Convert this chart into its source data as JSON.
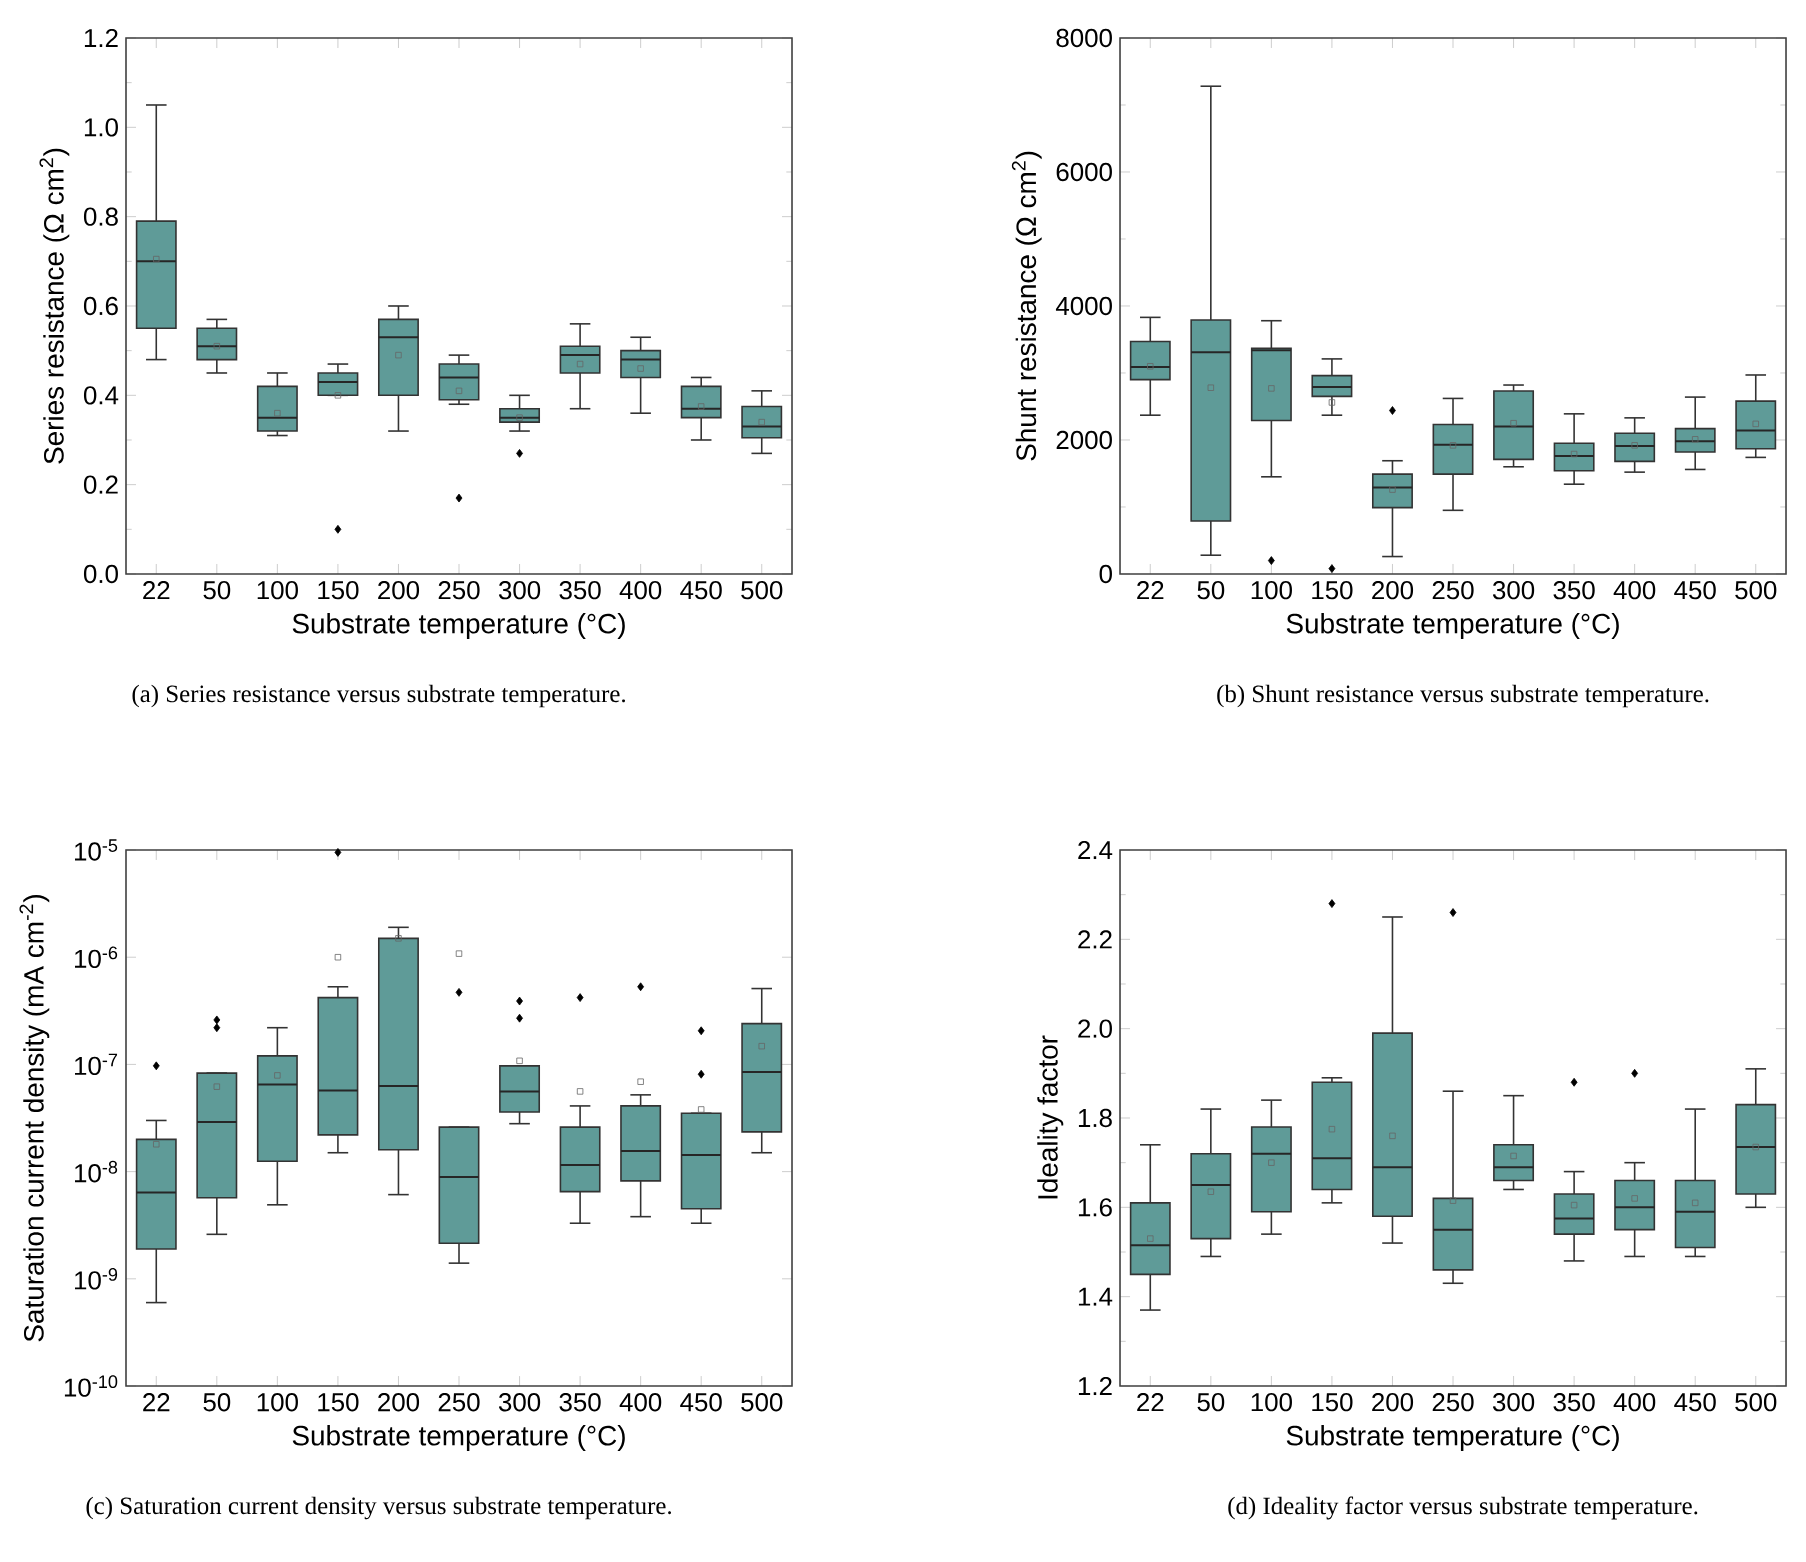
{
  "chart_data": [
    {
      "type": "box",
      "xlabel": "Substrate temperature (°C)",
      "ylabel": "Series resistance (Ω cm$^{2}$)",
      "categories": [
        "22",
        "50",
        "100",
        "150",
        "200",
        "250",
        "300",
        "350",
        "400",
        "450",
        "500"
      ],
      "color": "#5f9b98",
      "ylim": [
        0,
        1.2
      ],
      "yticks": [
        {
          "value": 0,
          "label": "0.0"
        },
        {
          "value": 0.2,
          "label": "0.2"
        },
        {
          "value": 0.4,
          "label": "0.4"
        },
        {
          "value": 0.6,
          "label": "0.6"
        },
        {
          "value": 0.8,
          "label": "0.8"
        },
        {
          "value": 1.0,
          "label": "1.0"
        },
        {
          "value": 1.2,
          "label": "1.2"
        }
      ],
      "annotations": [
        "(a) Series resistance versus substrate temperature."
      ],
      "boxes": [
        {
          "low": 0.48,
          "q1": 0.55,
          "median": 0.7,
          "q3": 0.79,
          "high": 1.05,
          "mean": 0.705
        },
        {
          "low": 0.45,
          "q1": 0.48,
          "median": 0.51,
          "q3": 0.55,
          "high": 0.57,
          "mean": 0.51
        },
        {
          "low": 0.31,
          "q1": 0.32,
          "median": 0.35,
          "q3": 0.42,
          "high": 0.45,
          "mean": 0.36
        },
        {
          "low": 0.4,
          "q1": 0.4,
          "median": 0.43,
          "q3": 0.45,
          "high": 0.47,
          "mean": 0.4,
          "outliers": [
            0.1
          ]
        },
        {
          "low": 0.32,
          "q1": 0.4,
          "median": 0.53,
          "q3": 0.57,
          "high": 0.6,
          "mean": 0.49
        },
        {
          "low": 0.38,
          "q1": 0.39,
          "median": 0.44,
          "q3": 0.47,
          "high": 0.49,
          "mean": 0.41,
          "outliers": [
            0.17
          ]
        },
        {
          "low": 0.32,
          "q1": 0.34,
          "median": 0.35,
          "q3": 0.37,
          "high": 0.4,
          "mean": 0.35,
          "outliers": [
            0.27
          ]
        },
        {
          "low": 0.37,
          "q1": 0.45,
          "median": 0.49,
          "q3": 0.51,
          "high": 0.56,
          "mean": 0.47
        },
        {
          "low": 0.36,
          "q1": 0.44,
          "median": 0.48,
          "q3": 0.5,
          "high": 0.53,
          "mean": 0.46
        },
        {
          "low": 0.3,
          "q1": 0.35,
          "median": 0.37,
          "q3": 0.42,
          "high": 0.44,
          "mean": 0.375
        },
        {
          "low": 0.27,
          "q1": 0.305,
          "median": 0.33,
          "q3": 0.375,
          "high": 0.41,
          "mean": 0.34
        }
      ]
    },
    {
      "type": "box",
      "xlabel": "Substrate temperature (°C)",
      "ylabel": "Shunt resistance (Ω cm$^{2}$)",
      "categories": [
        "22",
        "50",
        "100",
        "150",
        "200",
        "250",
        "300",
        "350",
        "400",
        "450",
        "500"
      ],
      "color": "#5f9b98",
      "ylim": [
        0,
        8000
      ],
      "yticks": [
        0,
        2000,
        4000,
        6000,
        8000
      ],
      "annotations": [
        "(b) Shunt resistance versus substrate temperature."
      ],
      "boxes": [
        {
          "low": 2370,
          "q1": 2900,
          "median": 3090,
          "q3": 3470,
          "high": 3830,
          "mean": 3100
        },
        {
          "low": 280,
          "q1": 790,
          "median": 3310,
          "q3": 3790,
          "high": 7280,
          "mean": 2780
        },
        {
          "low": 1450,
          "q1": 2290,
          "median": 3340,
          "q3": 3370,
          "high": 3780,
          "mean": 2770,
          "outliers": [
            200
          ]
        },
        {
          "low": 2370,
          "q1": 2650,
          "median": 2790,
          "q3": 2960,
          "high": 3210,
          "mean": 2560,
          "outliers": [
            80
          ]
        },
        {
          "low": 260,
          "q1": 990,
          "median": 1290,
          "q3": 1490,
          "high": 1690,
          "mean": 1260,
          "outliers": [
            2440
          ]
        },
        {
          "low": 950,
          "q1": 1490,
          "median": 1930,
          "q3": 2230,
          "high": 2620,
          "mean": 1920
        },
        {
          "low": 1600,
          "q1": 1710,
          "median": 2200,
          "q3": 2730,
          "high": 2820,
          "mean": 2250
        },
        {
          "low": 1340,
          "q1": 1540,
          "median": 1760,
          "q3": 1950,
          "high": 2390,
          "mean": 1790
        },
        {
          "low": 1520,
          "q1": 1680,
          "median": 1910,
          "q3": 2100,
          "high": 2330,
          "mean": 1920
        },
        {
          "low": 1560,
          "q1": 1820,
          "median": 1980,
          "q3": 2170,
          "high": 2640,
          "mean": 2010
        },
        {
          "low": 1740,
          "q1": 1870,
          "median": 2140,
          "q3": 2580,
          "high": 2970,
          "mean": 2240
        }
      ]
    },
    {
      "type": "box",
      "xlabel": "Substrate temperature (°C)",
      "ylabel": "Saturation current density (mA cm$^{-2}$)",
      "categories": [
        "22",
        "50",
        "100",
        "150",
        "200",
        "250",
        "300",
        "350",
        "400",
        "450",
        "500"
      ],
      "color": "#5f9b98",
      "log": true,
      "ylim": [
        1e-10,
        1e-05
      ],
      "yticks": [
        {
          "value": 1e-10,
          "label": "10$^{-10}$"
        },
        {
          "value": 1e-09,
          "label": "10$^{-9}$"
        },
        {
          "value": 1e-08,
          "label": "10$^{-8}$"
        },
        {
          "value": 1e-07,
          "label": "10$^{-7}$"
        },
        {
          "value": 1e-06,
          "label": "10$^{-6}$"
        },
        {
          "value": 1e-05,
          "label": "10$^{-5}$"
        }
      ],
      "annotations": [
        "(c) Saturation current density versus substrate temperature."
      ],
      "boxes": [
        {
          "low": 6e-10,
          "q1": 1.9e-09,
          "median": 6.4e-09,
          "q3": 2e-08,
          "high": 3e-08,
          "mean": 1.8e-08,
          "outliers": [
            9.7e-08
          ]
        },
        {
          "low": 2.6e-09,
          "q1": 5.7e-09,
          "median": 2.9e-08,
          "q3": 8.3e-08,
          "high": 8.3e-08,
          "mean": 6.2e-08,
          "outliers": [
            2.2e-07,
            2.6e-07
          ]
        },
        {
          "low": 4.9e-09,
          "q1": 1.25e-08,
          "median": 6.5e-08,
          "q3": 1.2e-07,
          "high": 2.2e-07,
          "mean": 7.9e-08
        },
        {
          "low": 1.5e-08,
          "q1": 2.2e-08,
          "median": 5.7e-08,
          "q3": 4.2e-07,
          "high": 5.3e-07,
          "mean": 1e-06,
          "outliers": [
            9.5e-06
          ]
        },
        {
          "low": 6.1e-09,
          "q1": 1.6e-08,
          "median": 6.3e-08,
          "q3": 1.5e-06,
          "high": 1.9e-06,
          "mean": 1.5e-06
        },
        {
          "low": 1.4e-09,
          "q1": 2.15e-09,
          "median": 8.9e-09,
          "q3": 2.6e-08,
          "high": 2.6e-08,
          "mean": 1.08e-06,
          "outliers": [
            4.7e-07
          ]
        },
        {
          "low": 2.8e-08,
          "q1": 3.6e-08,
          "median": 5.6e-08,
          "q3": 9.7e-08,
          "high": 9.7e-08,
          "mean": 1.08e-07,
          "outliers": [
            2.7e-07,
            3.9e-07
          ]
        },
        {
          "low": 3.3e-09,
          "q1": 6.5e-09,
          "median": 1.15e-08,
          "q3": 2.6e-08,
          "high": 4.1e-08,
          "mean": 5.6e-08,
          "outliers": [
            4.2e-07
          ]
        },
        {
          "low": 3.8e-09,
          "q1": 8.2e-09,
          "median": 1.56e-08,
          "q3": 4.1e-08,
          "high": 5.2e-08,
          "mean": 6.9e-08,
          "outliers": [
            5.3e-07
          ]
        },
        {
          "low": 3.3e-09,
          "q1": 4.5e-09,
          "median": 1.43e-08,
          "q3": 3.5e-08,
          "high": 3.5e-08,
          "mean": 3.8e-08,
          "outliers": [
            8.1e-08,
            2.06e-07
          ]
        },
        {
          "low": 1.5e-08,
          "q1": 2.35e-08,
          "median": 8.5e-08,
          "q3": 2.4e-07,
          "high": 5.1e-07,
          "mean": 1.48e-07
        }
      ]
    },
    {
      "type": "box",
      "xlabel": "Substrate temperature (°C)",
      "ylabel": "Ideality factor",
      "categories": [
        "22",
        "50",
        "100",
        "150",
        "200",
        "250",
        "300",
        "350",
        "400",
        "450",
        "500"
      ],
      "color": "#5f9b98",
      "ylim": [
        1.2,
        2.4
      ],
      "yticks": [
        {
          "value": 1.2,
          "label": "1.2"
        },
        {
          "value": 1.4,
          "label": "1.4"
        },
        {
          "value": 1.6,
          "label": "1.6"
        },
        {
          "value": 1.8,
          "label": "1.8"
        },
        {
          "value": 2.0,
          "label": "2.0"
        },
        {
          "value": 2.2,
          "label": "2.2"
        },
        {
          "value": 2.4,
          "label": "2.4"
        }
      ],
      "annotations": [
        "(d) Ideality factor versus substrate temperature."
      ],
      "boxes": [
        {
          "low": 1.37,
          "q1": 1.45,
          "median": 1.515,
          "q3": 1.61,
          "high": 1.74,
          "mean": 1.53
        },
        {
          "low": 1.49,
          "q1": 1.53,
          "median": 1.65,
          "q3": 1.72,
          "high": 1.82,
          "mean": 1.635
        },
        {
          "low": 1.54,
          "q1": 1.59,
          "median": 1.72,
          "q3": 1.78,
          "high": 1.84,
          "mean": 1.7
        },
        {
          "low": 1.61,
          "q1": 1.64,
          "median": 1.71,
          "q3": 1.88,
          "high": 1.89,
          "mean": 1.775,
          "outliers": [
            2.28
          ]
        },
        {
          "low": 1.52,
          "q1": 1.58,
          "median": 1.69,
          "q3": 1.99,
          "high": 2.25,
          "mean": 1.76
        },
        {
          "low": 1.43,
          "q1": 1.46,
          "median": 1.55,
          "q3": 1.62,
          "high": 1.86,
          "mean": 1.615,
          "outliers": [
            2.26
          ]
        },
        {
          "low": 1.64,
          "q1": 1.66,
          "median": 1.69,
          "q3": 1.74,
          "high": 1.85,
          "mean": 1.715
        },
        {
          "low": 1.48,
          "q1": 1.54,
          "median": 1.575,
          "q3": 1.63,
          "high": 1.68,
          "mean": 1.605,
          "outliers": [
            1.88
          ]
        },
        {
          "low": 1.49,
          "q1": 1.55,
          "median": 1.6,
          "q3": 1.66,
          "high": 1.7,
          "mean": 1.62,
          "outliers": [
            1.9
          ]
        },
        {
          "low": 1.49,
          "q1": 1.51,
          "median": 1.59,
          "q3": 1.66,
          "high": 1.82,
          "mean": 1.61
        },
        {
          "low": 1.6,
          "q1": 1.63,
          "median": 1.735,
          "q3": 1.83,
          "high": 1.91,
          "mean": 1.735
        }
      ]
    }
  ]
}
